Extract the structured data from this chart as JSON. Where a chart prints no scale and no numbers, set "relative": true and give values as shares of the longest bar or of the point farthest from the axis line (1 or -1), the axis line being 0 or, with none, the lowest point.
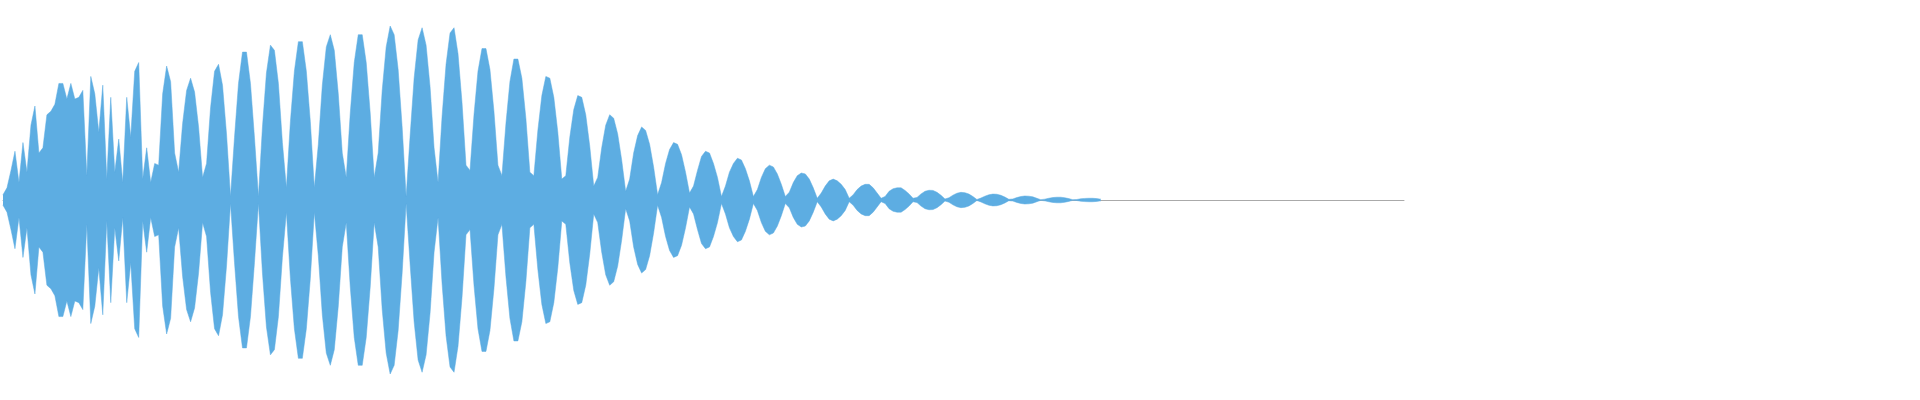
{
  "chart_data": {
    "type": "area",
    "relative": true,
    "categories": [
      null,
      null,
      null,
      null,
      null,
      null,
      null,
      null,
      null,
      null,
      null,
      null,
      null,
      null,
      null,
      null,
      null,
      null,
      null,
      null,
      null,
      null,
      null,
      null,
      null,
      null,
      null,
      null,
      null,
      null,
      null,
      null,
      null,
      null,
      null,
      null,
      null,
      null,
      null,
      null,
      null,
      null,
      null,
      null,
      null,
      null,
      null,
      null,
      null,
      null,
      null,
      null,
      null,
      null,
      null,
      null,
      null,
      null,
      null,
      null,
      null,
      null,
      null,
      null,
      null,
      null,
      null,
      null,
      null,
      null,
      null,
      null,
      null,
      null,
      null,
      null,
      null,
      null,
      null,
      null,
      null,
      null,
      null,
      null,
      null,
      null,
      null,
      null,
      null,
      null,
      null,
      null,
      null,
      null,
      null,
      null,
      null,
      null,
      null,
      null,
      null,
      null,
      null,
      null,
      null,
      null,
      null,
      null,
      null,
      null,
      null,
      null,
      null,
      null,
      null,
      null,
      null,
      null,
      null,
      null,
      null,
      null,
      null,
      null,
      null,
      null,
      null,
      null,
      null,
      null,
      null,
      null,
      null,
      null,
      null,
      null,
      null,
      null,
      null,
      null,
      null,
      null,
      null,
      null,
      null,
      null,
      null,
      null,
      null,
      null,
      null,
      null,
      null,
      null,
      null,
      null,
      null,
      null,
      null,
      null,
      null,
      null,
      null,
      null,
      null,
      null,
      null,
      null,
      null,
      null,
      null,
      null,
      null,
      null,
      null,
      null,
      null,
      null,
      null,
      null,
      null,
      null,
      null,
      null,
      null,
      null,
      null,
      null,
      null,
      null,
      null,
      null,
      null,
      null,
      null,
      null,
      null,
      null,
      null,
      null,
      null,
      null,
      null,
      null,
      null,
      null,
      null,
      null,
      null,
      null,
      null,
      null,
      null,
      null,
      null,
      null,
      null,
      null,
      null,
      null,
      null,
      null,
      null,
      null,
      null,
      null,
      null,
      null,
      null,
      null,
      null,
      null,
      null,
      null,
      null,
      null,
      null,
      null,
      null,
      null,
      null,
      null,
      null,
      null,
      null,
      null,
      null,
      null,
      null,
      null,
      null,
      null,
      null,
      null,
      null,
      null,
      null,
      null,
      null,
      null,
      null,
      null,
      null,
      null,
      null,
      null,
      null,
      null,
      null,
      null,
      null,
      null,
      null,
      null,
      null,
      null,
      null,
      null,
      null,
      null,
      null,
      null,
      null,
      null,
      null,
      null,
      null,
      null,
      null,
      null,
      null,
      null,
      null,
      null,
      null,
      null,
      null,
      null,
      null,
      null,
      null,
      null,
      null,
      null,
      null,
      null,
      null,
      null,
      null,
      null,
      null,
      null,
      null,
      null,
      null,
      null,
      null,
      null,
      null,
      null,
      null,
      null,
      null,
      null,
      null,
      null,
      null,
      null,
      null,
      null,
      null,
      null,
      null,
      null,
      null,
      null,
      null,
      null,
      null,
      null,
      null,
      null,
      null,
      null,
      null,
      null,
      null,
      null,
      null,
      null,
      null,
      null
    ],
    "series": [
      {
        "color": "#5dade2",
        "values": [
          0.03,
          0.07,
          0.17,
          0.28,
          0.1,
          0.33,
          0.16,
          0.43,
          0.54,
          0.27,
          0.3,
          0.49,
          0.51,
          0.55,
          0.67,
          0.67,
          0.58,
          0.67,
          0.58,
          0.59,
          0.63,
          0.14,
          0.71,
          0.61,
          0.39,
          0.66,
          0.12,
          0.59,
          0.16,
          0.35,
          0.1,
          0.59,
          0.36,
          0.74,
          0.79,
          0.12,
          0.3,
          0.1,
          0.21,
          0.2,
          0.61,
          0.77,
          0.68,
          0.27,
          0.16,
          0.44,
          0.63,
          0.7,
          0.62,
          0.42,
          0.13,
          0.21,
          0.53,
          0.74,
          0.78,
          0.66,
          0.38,
          0.02,
          0.36,
          0.67,
          0.85,
          0.85,
          0.67,
          0.36,
          0.02,
          0.42,
          0.73,
          0.89,
          0.86,
          0.67,
          0.33,
          0.07,
          0.45,
          0.74,
          0.91,
          0.91,
          0.74,
          0.45,
          0.07,
          0.32,
          0.66,
          0.88,
          0.95,
          0.86,
          0.61,
          0.27,
          0.13,
          0.5,
          0.79,
          0.95,
          0.95,
          0.79,
          0.5,
          0.13,
          0.27,
          0.63,
          0.88,
          1,
          0.95,
          0.75,
          0.42,
          0.02,
          0.37,
          0.7,
          0.92,
          0.99,
          0.89,
          0.65,
          0.3,
          0.1,
          0.48,
          0.78,
          0.96,
          0.99,
          0.84,
          0.56,
          0.2,
          0.17,
          0.49,
          0.74,
          0.87,
          0.87,
          0.75,
          0.51,
          0.2,
          0.14,
          0.44,
          0.68,
          0.81,
          0.81,
          0.7,
          0.47,
          0.16,
          0.14,
          0.4,
          0.6,
          0.71,
          0.7,
          0.59,
          0.39,
          0.12,
          0.14,
          0.36,
          0.52,
          0.6,
          0.59,
          0.49,
          0.31,
          0.08,
          0.13,
          0.3,
          0.43,
          0.49,
          0.47,
          0.38,
          0.23,
          0.05,
          0.12,
          0.27,
          0.37,
          0.42,
          0.4,
          0.32,
          0.19,
          0.03,
          0.1,
          0.21,
          0.29,
          0.33,
          0.32,
          0.26,
          0.16,
          0.04,
          0.08,
          0.17,
          0.25,
          0.28,
          0.27,
          0.21,
          0.13,
          0.02,
          0.08,
          0.16,
          0.21,
          0.24,
          0.23,
          0.18,
          0.11,
          0.02,
          0.06,
          0.13,
          0.18,
          0.2,
          0.19,
          0.15,
          0.09,
          0.02,
          0.045,
          0.1,
          0.14,
          0.155,
          0.15,
          0.12,
          0.07,
          0.01,
          0.04,
          0.08,
          0.11,
          0.12,
          0.11,
          0.09,
          0.06,
          0.01,
          0.03,
          0.06,
          0.08,
          0.09,
          0.09,
          0.07,
          0.04,
          0.01,
          0.02,
          0.05,
          0.065,
          0.07,
          0.07,
          0.055,
          0.035,
          0.01,
          0.015,
          0.035,
          0.05,
          0.056,
          0.055,
          0.044,
          0.027,
          0.006,
          0.013,
          0.028,
          0.039,
          0.044,
          0.042,
          0.034,
          0.02,
          0.003,
          0.011,
          0.022,
          0.03,
          0.034,
          0.033,
          0.027,
          0.017,
          0.004,
          0.006,
          0.014,
          0.02,
          0.023,
          0.022,
          0.018,
          0.01,
          0.002,
          0.005,
          0.01,
          0.014,
          0.016,
          0.016,
          0.013,
          0.008,
          0.002,
          0.003,
          0.007,
          0.009,
          0.01,
          0.01,
          0.008,
          0.005,
          null,
          null,
          null,
          null,
          null,
          null,
          null,
          null,
          null,
          null,
          null,
          null,
          null,
          null,
          null,
          null,
          null,
          null,
          null,
          null,
          null,
          null,
          null,
          null,
          null,
          null,
          null,
          null,
          null,
          null,
          null,
          null,
          null,
          null,
          null,
          null,
          null,
          null,
          null,
          null,
          null,
          null,
          null,
          null,
          null,
          null,
          null,
          null,
          null,
          null,
          null,
          null,
          null,
          null,
          null,
          null,
          null,
          null,
          null,
          null,
          null,
          null,
          null,
          null,
          null,
          null,
          null,
          null,
          null,
          null,
          null,
          null,
          null,
          null,
          null,
          null
        ]
      },
      {
        "color": "#5dade2",
        "values": [
          -0.03,
          -0.07,
          -0.17,
          -0.28,
          -0.1,
          -0.33,
          -0.16,
          -0.43,
          -0.54,
          -0.27,
          -0.3,
          -0.49,
          -0.51,
          -0.55,
          -0.67,
          -0.67,
          -0.58,
          -0.67,
          -0.58,
          -0.59,
          -0.63,
          -0.14,
          -0.71,
          -0.61,
          -0.39,
          -0.66,
          -0.12,
          -0.59,
          -0.16,
          -0.35,
          -0.1,
          -0.59,
          -0.36,
          -0.74,
          -0.79,
          -0.12,
          -0.3,
          -0.1,
          -0.21,
          -0.2,
          -0.61,
          -0.77,
          -0.68,
          -0.27,
          -0.16,
          -0.44,
          -0.63,
          -0.7,
          -0.62,
          -0.42,
          -0.13,
          -0.21,
          -0.53,
          -0.74,
          -0.78,
          -0.66,
          -0.38,
          -0.02,
          -0.36,
          -0.67,
          -0.85,
          -0.85,
          -0.67,
          -0.36,
          -0.02,
          -0.42,
          -0.73,
          -0.89,
          -0.86,
          -0.67,
          -0.33,
          -0.07,
          -0.45,
          -0.74,
          -0.91,
          -0.91,
          -0.74,
          -0.45,
          -0.07,
          -0.32,
          -0.66,
          -0.88,
          -0.95,
          -0.86,
          -0.61,
          -0.27,
          -0.13,
          -0.5,
          -0.79,
          -0.95,
          -0.95,
          -0.79,
          -0.5,
          -0.13,
          -0.27,
          -0.63,
          -0.88,
          -1,
          -0.95,
          -0.75,
          -0.42,
          -0.02,
          -0.37,
          -0.7,
          -0.92,
          -0.99,
          -0.89,
          -0.65,
          -0.3,
          -0.1,
          -0.48,
          -0.78,
          -0.96,
          -0.99,
          -0.84,
          -0.56,
          -0.2,
          -0.17,
          -0.49,
          -0.74,
          -0.87,
          -0.87,
          -0.75,
          -0.51,
          -0.2,
          -0.14,
          -0.44,
          -0.68,
          -0.81,
          -0.81,
          -0.7,
          -0.47,
          -0.16,
          -0.14,
          -0.4,
          -0.6,
          -0.71,
          -0.7,
          -0.59,
          -0.39,
          -0.12,
          -0.14,
          -0.36,
          -0.52,
          -0.6,
          -0.59,
          -0.49,
          -0.31,
          -0.08,
          -0.13,
          -0.3,
          -0.43,
          -0.49,
          -0.47,
          -0.38,
          -0.23,
          -0.05,
          -0.12,
          -0.27,
          -0.37,
          -0.42,
          -0.4,
          -0.32,
          -0.19,
          -0.03,
          -0.1,
          -0.21,
          -0.29,
          -0.33,
          -0.32,
          -0.26,
          -0.16,
          -0.04,
          -0.08,
          -0.17,
          -0.25,
          -0.28,
          -0.27,
          -0.21,
          -0.13,
          -0.02,
          -0.08,
          -0.16,
          -0.21,
          -0.24,
          -0.23,
          -0.18,
          -0.11,
          -0.02,
          -0.06,
          -0.13,
          -0.18,
          -0.2,
          -0.19,
          -0.15,
          -0.09,
          -0.02,
          -0.045,
          -0.1,
          -0.14,
          -0.155,
          -0.15,
          -0.12,
          -0.07,
          -0.01,
          -0.04,
          -0.08,
          -0.11,
          -0.12,
          -0.11,
          -0.09,
          -0.06,
          -0.01,
          -0.03,
          -0.06,
          -0.08,
          -0.09,
          -0.09,
          -0.07,
          -0.04,
          -0.01,
          -0.02,
          -0.05,
          -0.065,
          -0.07,
          -0.07,
          -0.055,
          -0.035,
          -0.01,
          -0.015,
          -0.035,
          -0.05,
          -0.056,
          -0.055,
          -0.044,
          -0.027,
          -0.006,
          -0.013,
          -0.028,
          -0.039,
          -0.044,
          -0.042,
          -0.034,
          -0.02,
          -0.003,
          -0.011,
          -0.022,
          -0.03,
          -0.034,
          -0.033,
          -0.027,
          -0.017,
          -0.004,
          -0.006,
          -0.014,
          -0.02,
          -0.023,
          -0.022,
          -0.018,
          -0.01,
          -0.002,
          -0.005,
          -0.01,
          -0.014,
          -0.016,
          -0.016,
          -0.013,
          -0.008,
          -0.002,
          -0.003,
          -0.007,
          -0.009,
          -0.01,
          -0.01,
          -0.008,
          -0.005,
          null,
          null,
          null,
          null,
          null,
          null,
          null,
          null,
          null,
          null,
          null,
          null,
          null,
          null,
          null,
          null,
          null,
          null,
          null,
          null,
          null,
          null,
          null,
          null,
          null,
          null,
          null,
          null,
          null,
          null,
          null,
          null,
          null,
          null,
          null,
          null,
          null,
          null,
          null,
          null,
          null,
          null,
          null,
          null,
          null,
          null,
          null,
          null,
          null,
          null,
          null,
          null,
          null,
          null,
          null,
          null,
          null,
          null,
          null,
          null,
          null,
          null,
          null,
          null,
          null,
          null,
          null,
          null,
          null,
          null,
          null,
          null,
          null,
          null,
          null,
          null
        ]
      }
    ]
  }
}
